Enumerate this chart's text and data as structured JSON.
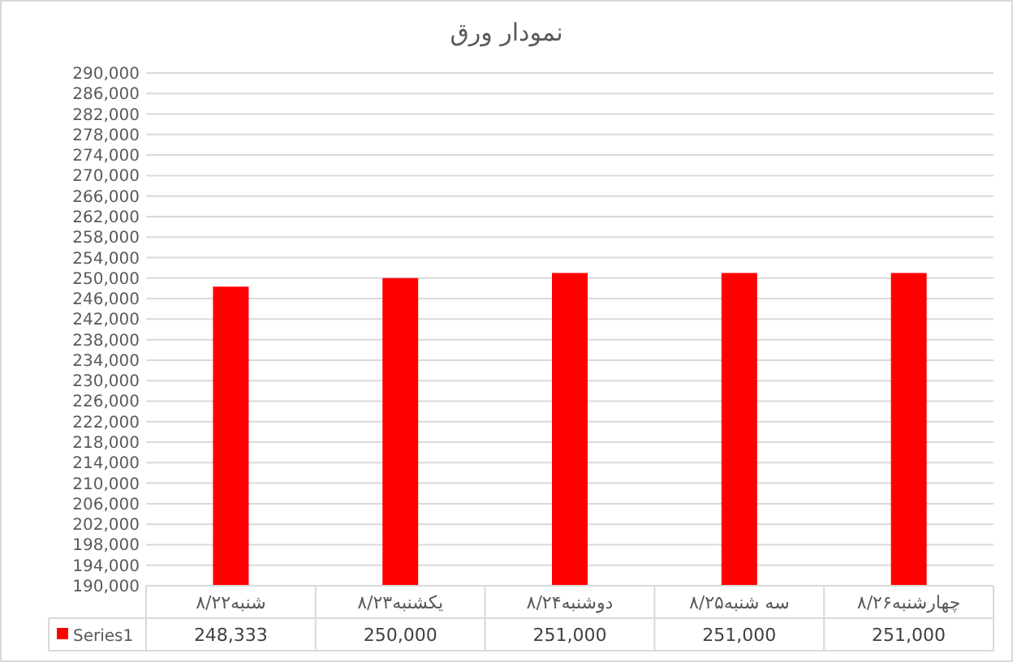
{
  "chart_data": {
    "type": "bar",
    "title": "نمودار ورق",
    "categories": [
      "شنبه۸/۲۲",
      "یکشنبه۸/۲۳",
      "دوشنبه۸/۲۴",
      "سه شنبه۸/۲۵",
      "چهارشنبه۸/۲۶"
    ],
    "series": [
      {
        "name": "Series1",
        "color": "#ff0000",
        "values": [
          248333,
          250000,
          251000,
          251000,
          251000
        ],
        "value_labels": [
          "248,333",
          "250,000",
          "251,000",
          "251,000",
          "251,000"
        ]
      }
    ],
    "ylim": [
      190000,
      290000
    ],
    "yticks": [
      {
        "value": 190000,
        "label": "190,000"
      },
      {
        "value": 194000,
        "label": "194,000"
      },
      {
        "value": 198000,
        "label": "198,000"
      },
      {
        "value": 202000,
        "label": "202,000"
      },
      {
        "value": 206000,
        "label": "206,000"
      },
      {
        "value": 210000,
        "label": "210,000"
      },
      {
        "value": 214000,
        "label": "214,000"
      },
      {
        "value": 218000,
        "label": "218,000"
      },
      {
        "value": 222000,
        "label": "222,000"
      },
      {
        "value": 226000,
        "label": "226,000"
      },
      {
        "value": 230000,
        "label": "230,000"
      },
      {
        "value": 234000,
        "label": "234,000"
      },
      {
        "value": 238000,
        "label": "238,000"
      },
      {
        "value": 242000,
        "label": "242,000"
      },
      {
        "value": 246000,
        "label": "246,000"
      },
      {
        "value": 250000,
        "label": "250,000"
      },
      {
        "value": 254000,
        "label": "254,000"
      },
      {
        "value": 258000,
        "label": "258,000"
      },
      {
        "value": 262000,
        "label": "262,000"
      },
      {
        "value": 266000,
        "label": "266,000"
      },
      {
        "value": 270000,
        "label": "270,000"
      },
      {
        "value": 274000,
        "label": "274,000"
      },
      {
        "value": 278000,
        "label": "278,000"
      },
      {
        "value": 282000,
        "label": "282,000"
      },
      {
        "value": 286000,
        "label": "286,000"
      },
      {
        "value": 290000,
        "label": "290,000"
      }
    ],
    "grid": "y",
    "legend": "bottom left"
  }
}
